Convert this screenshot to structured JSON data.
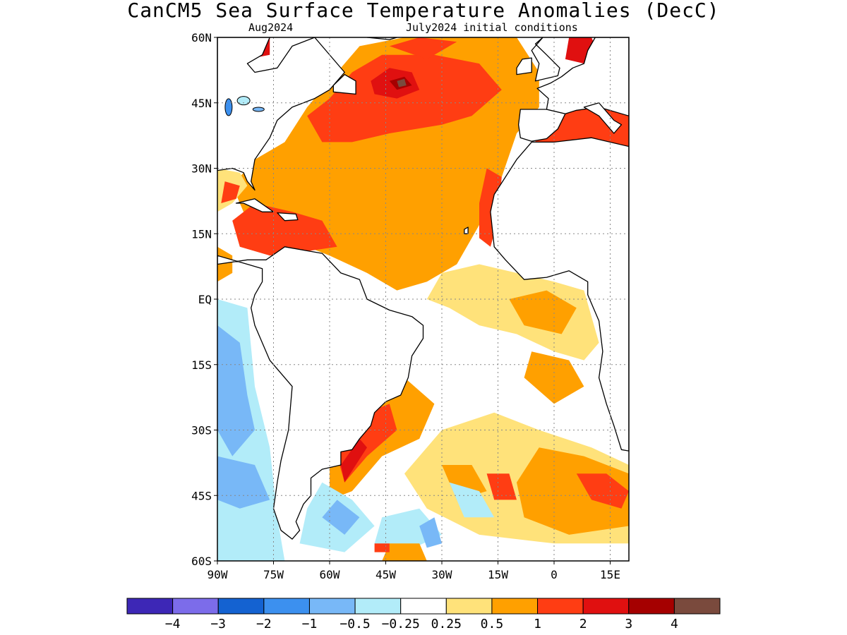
{
  "title": "CanCM5 Sea Surface Temperature Anomalies (DecC)",
  "subtitle_left": "Aug2024",
  "subtitle_right": "July2024 initial conditions",
  "map": {
    "lon_range": [
      -90,
      20
    ],
    "lat_range": [
      -60,
      60
    ],
    "lat_ticks": [
      {
        "value": 60,
        "label": "60N"
      },
      {
        "value": 45,
        "label": "45N"
      },
      {
        "value": 30,
        "label": "30N"
      },
      {
        "value": 15,
        "label": "15N"
      },
      {
        "value": 0,
        "label": "EQ"
      },
      {
        "value": -15,
        "label": "15S"
      },
      {
        "value": -30,
        "label": "30S"
      },
      {
        "value": -45,
        "label": "45S"
      },
      {
        "value": -60,
        "label": "60S"
      }
    ],
    "lon_ticks": [
      {
        "value": -90,
        "label": "90W"
      },
      {
        "value": -75,
        "label": "75W"
      },
      {
        "value": -60,
        "label": "60W"
      },
      {
        "value": -45,
        "label": "45W"
      },
      {
        "value": -30,
        "label": "30W"
      },
      {
        "value": -15,
        "label": "15W"
      },
      {
        "value": 0,
        "label": "0"
      },
      {
        "value": 15,
        "label": "15E"
      }
    ],
    "grid": "dotted",
    "ocean_color": "#ffffff",
    "land_color": "#ffffff",
    "coast_color": "#000000"
  },
  "colorbar": {
    "colors": [
      "#3d27b6",
      "#7c6cea",
      "#1462d1",
      "#3c90ef",
      "#78b8f7",
      "#b2ecf9",
      "#ffffff",
      "#ffe27a",
      "#ffa000",
      "#ff3d13",
      "#e01010",
      "#a50000",
      "#7a4a3d"
    ],
    "labels": [
      "−4",
      "−3",
      "−2",
      "−1",
      "−0.5",
      "−0.25",
      "0.25",
      "0.5",
      "1",
      "2",
      "3",
      "4"
    ]
  }
}
